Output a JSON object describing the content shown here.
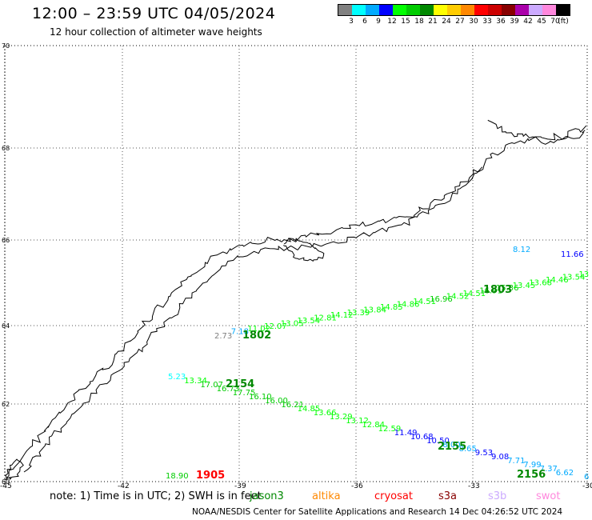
{
  "header": {
    "title": "12:00 – 23:59 UTC 04/05/2024",
    "subtitle": "12 hour collection of altimeter wave heights"
  },
  "legend": {
    "colors": [
      "#808080",
      "#00ffff",
      "#00aaff",
      "#0000ff",
      "#00ff00",
      "#00cc00",
      "#008800",
      "#ffff00",
      "#ffcc00",
      "#ff8800",
      "#ff0000",
      "#cc0000",
      "#880000",
      "#aa00aa",
      "#ccaaff",
      "#ff88dd",
      "#000000"
    ],
    "labels": [
      "3",
      "6",
      "9",
      "12",
      "15",
      "18",
      "21",
      "24",
      "27",
      "30",
      "33",
      "36",
      "39",
      "42",
      "45",
      "70",
      "(ft)"
    ]
  },
  "axes": {
    "lat_labels": [
      "70",
      "68",
      "66",
      "64",
      "62",
      "60"
    ],
    "lon_labels": [
      "-45",
      "-42",
      "-39",
      "-36",
      "-33",
      "-30"
    ]
  },
  "tracks": [
    {
      "time": "1802",
      "time_color": "#008800",
      "points": [
        {
          "v": "2.73",
          "c": "#808080"
        },
        {
          "v": "7.18",
          "c": "#00aaff"
        },
        {
          "v": "11.02",
          "c": "#00ff00"
        },
        {
          "v": "12.07",
          "c": "#00ff00"
        },
        {
          "v": "13.05",
          "c": "#00ff00"
        },
        {
          "v": "13.54",
          "c": "#00ff00"
        },
        {
          "v": "12.81",
          "c": "#00ff00"
        },
        {
          "v": "14.12",
          "c": "#00ff00"
        },
        {
          "v": "13.39",
          "c": "#00ff00"
        },
        {
          "v": "13.84",
          "c": "#00ff00"
        },
        {
          "v": "14.85",
          "c": "#00ff00"
        },
        {
          "v": "14.86",
          "c": "#00ff00"
        },
        {
          "v": "14.51",
          "c": "#00ff00"
        },
        {
          "v": "16.96",
          "c": "#00cc00"
        },
        {
          "v": "14.52",
          "c": "#00ff00"
        },
        {
          "v": "14.51",
          "c": "#00ff00"
        },
        {
          "v": "16.91",
          "c": "#00cc00"
        },
        {
          "v": "15.36",
          "c": "#00cc00"
        },
        {
          "v": "13.45",
          "c": "#00ff00"
        },
        {
          "v": "13.68",
          "c": "#00ff00"
        },
        {
          "v": "14.46",
          "c": "#00ff00"
        },
        {
          "v": "13.54",
          "c": "#00ff00"
        },
        {
          "v": "13",
          "c": "#00ff00"
        }
      ]
    },
    {
      "time": "1803",
      "time_color": "#008800"
    },
    {
      "time": "2154",
      "time_color": "#008800",
      "points": [
        {
          "v": "5.23",
          "c": "#00ffff"
        },
        {
          "v": "13.34",
          "c": "#00ff00"
        },
        {
          "v": "17.07",
          "c": "#00cc00"
        },
        {
          "v": "16.73",
          "c": "#00cc00"
        },
        {
          "v": "17.75",
          "c": "#00cc00"
        },
        {
          "v": "16.10",
          "c": "#00cc00"
        },
        {
          "v": "16.00",
          "c": "#00cc00"
        },
        {
          "v": "16.21",
          "c": "#00cc00"
        },
        {
          "v": "14.85",
          "c": "#00ff00"
        },
        {
          "v": "13.66",
          "c": "#00ff00"
        },
        {
          "v": "13.29",
          "c": "#00ff00"
        },
        {
          "v": "13.12",
          "c": "#00ff00"
        },
        {
          "v": "12.84",
          "c": "#00ff00"
        },
        {
          "v": "12.59",
          "c": "#00ff00"
        },
        {
          "v": "11.49",
          "c": "#0000ff"
        },
        {
          "v": "10.68",
          "c": "#0000ff"
        },
        {
          "v": "10.50",
          "c": "#0000ff"
        },
        {
          "v": "8.00",
          "c": "#00aaff"
        },
        {
          "v": "8.65",
          "c": "#00aaff"
        },
        {
          "v": "9.53",
          "c": "#0000ff"
        },
        {
          "v": "9.08",
          "c": "#0000ff"
        },
        {
          "v": "7.71",
          "c": "#00aaff"
        },
        {
          "v": "7.99",
          "c": "#00aaff"
        },
        {
          "v": "7.37",
          "c": "#00aaff"
        },
        {
          "v": "6.62",
          "c": "#00aaff"
        }
      ]
    },
    {
      "time": "2155",
      "time_color": "#008800"
    },
    {
      "time": "2156",
      "time_color": "#008800"
    },
    {
      "time": "1905",
      "time_color": "#ff0000",
      "points": [
        {
          "v": "18.90",
          "c": "#00cc00"
        }
      ]
    }
  ],
  "isolated_points": [
    {
      "v": "8.12",
      "c": "#00aaff"
    },
    {
      "v": "11.66",
      "c": "#0000ff"
    },
    {
      "v": "6",
      "c": "#00aaff"
    }
  ],
  "note": "note:  1) Time is in UTC;  2) SWH is in feet",
  "satellites": [
    {
      "name": "jason3",
      "c": "#008800"
    },
    {
      "name": "altika",
      "c": "#ff8800"
    },
    {
      "name": "cryosat",
      "c": "#ff0000"
    },
    {
      "name": "s3a",
      "c": "#880000"
    },
    {
      "name": "s3b",
      "c": "#ccaaff"
    },
    {
      "name": "swot",
      "c": "#ff88dd"
    }
  ],
  "footer": "NOAA/NESDIS Center for Satellite Applications and Research    14 Dec 04:26:52 UTC 2024"
}
